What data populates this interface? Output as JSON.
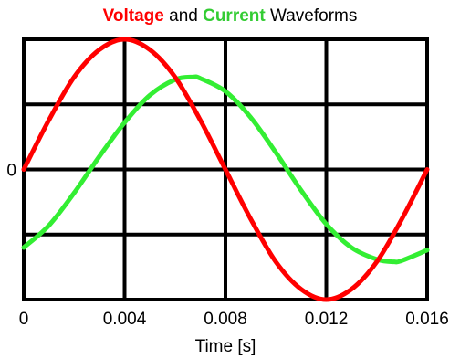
{
  "chart_data": {
    "type": "line",
    "title_parts": [
      {
        "text": "Voltage",
        "color": "#ff0000",
        "bold": true
      },
      {
        "text": " and ",
        "color": "#000000",
        "bold": false
      },
      {
        "text": "Current",
        "color": "#33cc33",
        "bold": true
      },
      {
        "text": " Waveforms",
        "color": "#000000",
        "bold": false
      }
    ],
    "xlabel": "Time [s]",
    "ylabel": "",
    "xlim": [
      0,
      0.016
    ],
    "ylim": [
      -1,
      1
    ],
    "x_ticks": [
      0,
      0.004,
      0.008,
      0.012,
      0.016
    ],
    "x_tick_labels": [
      "0",
      "0.004",
      "0.008",
      "0.012",
      "0.016"
    ],
    "y_ticks": [
      0
    ],
    "y_tick_labels": [
      "0"
    ],
    "grid": true,
    "grid_y_lines": [
      -1,
      -0.5,
      0,
      0.5,
      1
    ],
    "grid_x_lines": [
      0,
      0.004,
      0.008,
      0.012,
      0.016
    ],
    "series": [
      {
        "name": "Voltage",
        "color": "#ff0000",
        "x": [
          0,
          0.001,
          0.002,
          0.003,
          0.004,
          0.005,
          0.006,
          0.007,
          0.008,
          0.009,
          0.01,
          0.011,
          0.012,
          0.013,
          0.014,
          0.015,
          0.016
        ],
        "y": [
          0,
          0.38,
          0.71,
          0.92,
          1.0,
          0.92,
          0.71,
          0.38,
          0,
          -0.38,
          -0.71,
          -0.92,
          -1.0,
          -0.92,
          -0.71,
          -0.38,
          0
        ]
      },
      {
        "name": "Current",
        "color": "#33ee33",
        "x": [
          0,
          0.001,
          0.002,
          0.003,
          0.004,
          0.005,
          0.006,
          0.0067,
          0.007,
          0.008,
          0.009,
          0.01,
          0.011,
          0.012,
          0.013,
          0.014,
          0.0147,
          0.015,
          0.016
        ],
        "y": [
          -0.6,
          -0.43,
          -0.18,
          0.1,
          0.36,
          0.57,
          0.69,
          0.71,
          0.7,
          0.6,
          0.4,
          0.13,
          -0.16,
          -0.42,
          -0.6,
          -0.69,
          -0.71,
          -0.7,
          -0.62
        ]
      }
    ]
  }
}
